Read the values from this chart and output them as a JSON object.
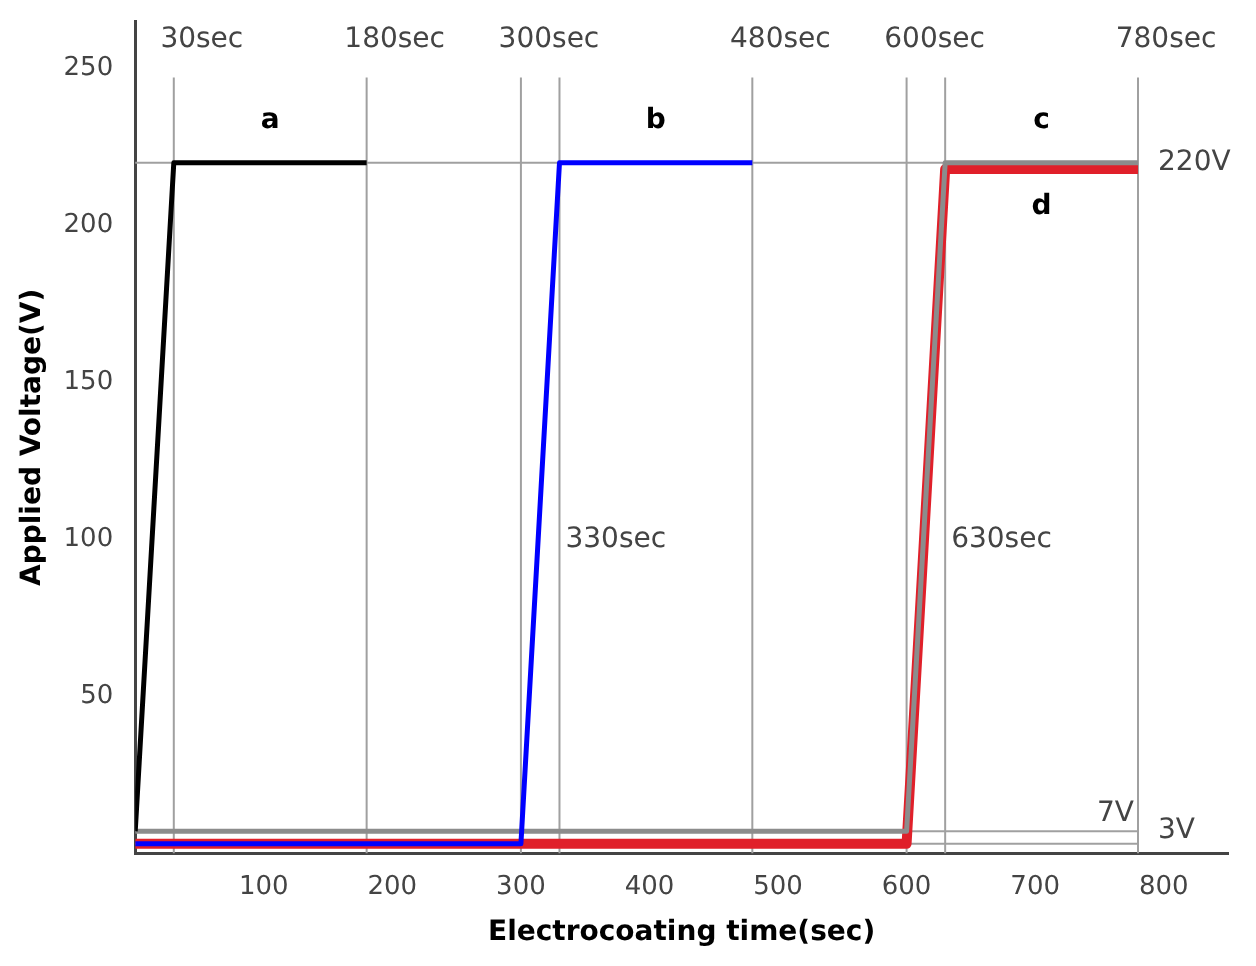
{
  "chart_data": {
    "type": "line",
    "xlabel": "Electrocoating time(sec)",
    "ylabel": "Applied Voltage(V)",
    "xlim": [
      0,
      850
    ],
    "xticks": [
      100,
      200,
      300,
      400,
      500,
      600,
      700,
      800
    ],
    "ylim": [
      0,
      265
    ],
    "yticks": [
      50,
      100,
      150,
      200,
      250
    ],
    "grid": false,
    "legend": false,
    "marker": "none",
    "line_style": "solid",
    "series": [
      {
        "name": "a",
        "color": "#000000",
        "x": [
          0,
          30,
          180
        ],
        "values": [
          7,
          220,
          220
        ]
      },
      {
        "name": "b",
        "color": "#0000ff",
        "x": [
          0,
          300,
          330,
          480
        ],
        "values": [
          3,
          3,
          220,
          220
        ]
      },
      {
        "name": "c",
        "color": "#8c8c8c",
        "x": [
          0,
          600,
          630,
          780
        ],
        "values": [
          7,
          7,
          220,
          220
        ]
      },
      {
        "name": "d",
        "color": "#e0202a",
        "x": [
          0,
          600,
          630,
          780
        ],
        "values": [
          3,
          3,
          218,
          218
        ]
      }
    ],
    "ref_lines": [
      {
        "axis": "x",
        "value": 30,
        "label": "30sec",
        "color": "#a0a0a0"
      },
      {
        "axis": "x",
        "value": 180,
        "label": "180sec",
        "color": "#a0a0a0"
      },
      {
        "axis": "x",
        "value": 300,
        "label": "300sec",
        "color": "#a0a0a0"
      },
      {
        "axis": "x",
        "value": 330,
        "label": null,
        "color": "#a0a0a0"
      },
      {
        "axis": "x",
        "value": 480,
        "label": "480sec",
        "color": "#a0a0a0"
      },
      {
        "axis": "x",
        "value": 600,
        "label": "600sec",
        "color": "#a0a0a0"
      },
      {
        "axis": "x",
        "value": 630,
        "label": null,
        "color": "#a0a0a0"
      },
      {
        "axis": "x",
        "value": 780,
        "label": "780sec",
        "color": "#a0a0a0"
      },
      {
        "axis": "y",
        "value": 220,
        "label": "220V",
        "color": "#a0a0a0"
      },
      {
        "axis": "y",
        "value": 7,
        "label": "7V",
        "color": "#a0a0a0"
      },
      {
        "axis": "y",
        "value": 3,
        "label": "3V",
        "color": "#a0a0a0"
      }
    ],
    "annotations": [
      {
        "text": "330sec",
        "x": 330,
        "y": 100
      },
      {
        "text": "630sec",
        "x": 630,
        "y": 100
      }
    ]
  }
}
